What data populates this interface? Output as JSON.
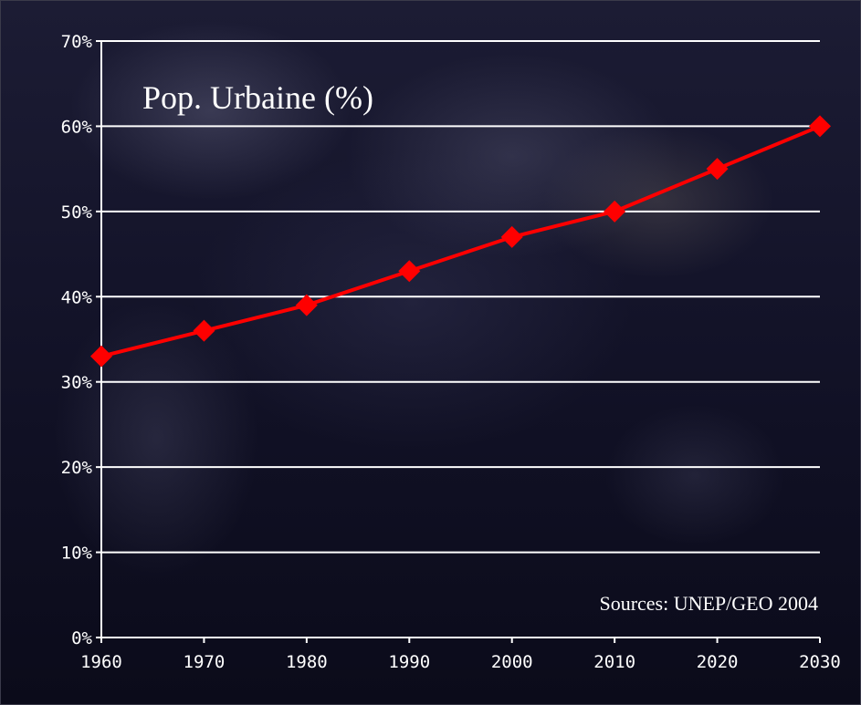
{
  "chart_data": {
    "type": "line",
    "title": "Pop. Urbaine (%)",
    "annotation": "Sources: UNEP/GEO 2004",
    "x": [
      1960,
      1970,
      1980,
      1990,
      2000,
      2010,
      2020,
      2030
    ],
    "x_tick_labels": [
      "1960",
      "1970",
      "1980",
      "1990",
      "2000",
      "2010",
      "2020",
      "2030"
    ],
    "y_tick_labels": [
      "0%",
      "10%",
      "20%",
      "30%",
      "40%",
      "50%",
      "60%",
      "70%"
    ],
    "y_ticks": [
      0,
      10,
      20,
      30,
      40,
      50,
      60,
      70
    ],
    "ylim": [
      0,
      70
    ],
    "xlim": [
      1960,
      2030
    ],
    "grid": true,
    "series": [
      {
        "values": [
          33,
          36,
          39,
          43,
          47,
          50,
          55,
          60
        ],
        "color": "#ff0000"
      }
    ]
  },
  "style": {
    "grid_color": "#ffffff",
    "axis_color": "#ffffff",
    "text_color": "#ffffff"
  }
}
